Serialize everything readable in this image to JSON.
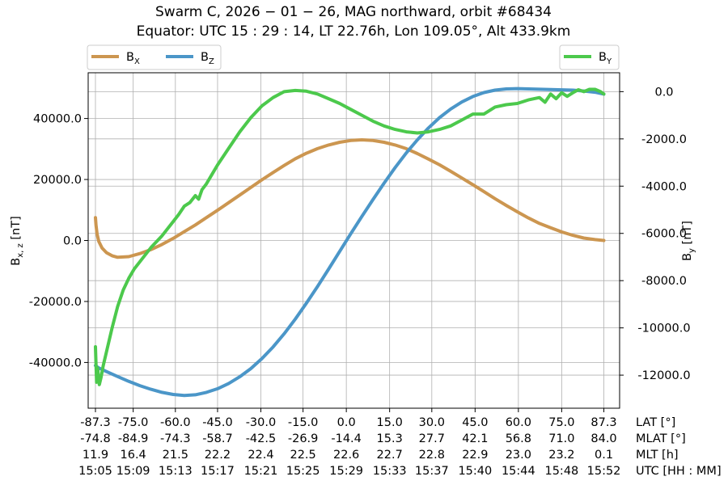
{
  "chart_data": {
    "type": "line",
    "title": "Swarm C,  2026 − 01 − 26,  MAG northward,  orbit #68434",
    "subtitle": "Equator:  UTC 15 : 29 : 14,  LT 22.76h,  Lon 109.05°,  Alt 433.9km",
    "left_axis": {
      "label_main": "B",
      "label_sub": "x, z",
      "label_unit": " [nT]",
      "range": [
        -55000,
        55000
      ],
      "ticks": [
        -40000,
        -20000,
        0,
        20000,
        40000
      ],
      "tick_labels": [
        "-40000.0",
        "-20000.0",
        "0.0",
        "20000.0",
        "40000.0"
      ]
    },
    "right_axis": {
      "label_main": "B",
      "label_sub": "y",
      "label_unit": " [nT]",
      "range": [
        -13400,
        800
      ],
      "ticks": [
        -12000,
        -10000,
        -8000,
        -6000,
        -4000,
        -2000,
        0
      ],
      "tick_labels": [
        "-12000.0",
        "-10000.0",
        "-8000.0",
        "-6000.0",
        "-4000.0",
        "-2000.0",
        "0.0"
      ]
    },
    "x_range": [
      0,
      47
    ],
    "x_rows": [
      {
        "label": "LAT [°]",
        "values": [
          "-87.3",
          "-75.0",
          "-60.0",
          "-45.0",
          "-30.0",
          "-15.0",
          "0.0",
          "15.0",
          "30.0",
          "45.0",
          "60.0",
          "75.0",
          "87.3"
        ]
      },
      {
        "label": "MLAT [°]",
        "values": [
          "-74.8",
          "-84.9",
          "-74.3",
          "-58.7",
          "-42.5",
          "-26.9",
          "-14.4",
          "15.3",
          "27.7",
          "42.1",
          "56.8",
          "71.0",
          "84.0"
        ]
      },
      {
        "label": "MLT [h]",
        "values": [
          "11.9",
          "16.4",
          "21.5",
          "22.2",
          "22.4",
          "22.5",
          "22.6",
          "22.7",
          "22.8",
          "22.9",
          "23.0",
          "23.2",
          "0.1"
        ]
      },
      {
        "label": "UTC [HH : MM]",
        "values": [
          "15:05",
          "15:09",
          "15:13",
          "15:17",
          "15:21",
          "15:25",
          "15:29",
          "15:33",
          "15:37",
          "15:40",
          "15:44",
          "15:48",
          "15:52"
        ]
      }
    ],
    "x_tick_positions": [
      0,
      3.4,
      7.2,
      11.0,
      14.9,
      18.7,
      22.6,
      26.5,
      30.3,
      34.2,
      38.1,
      42.0,
      45.8
    ],
    "legend_left": {
      "placement": "top-left",
      "entries": [
        {
          "main": "B",
          "sub": "X",
          "color": "#cc9650"
        },
        {
          "main": "B",
          "sub": "Z",
          "color": "#4b96c8"
        }
      ]
    },
    "legend_right": {
      "placement": "top-right",
      "entries": [
        {
          "main": "B",
          "sub": "Y",
          "color": "#4cc94c"
        }
      ]
    },
    "grid": true,
    "series": [
      {
        "name": "BX",
        "axis": "left",
        "color": "#cc9650",
        "x": [
          0,
          0.05,
          0.15,
          0.3,
          0.6,
          1,
          1.5,
          2,
          3,
          4,
          5,
          6,
          7,
          8,
          9,
          10,
          11,
          12,
          13,
          14,
          15,
          16,
          17,
          18,
          19,
          20,
          21,
          22,
          23,
          24,
          25,
          26,
          27,
          28,
          29,
          30,
          31,
          32,
          33,
          34,
          35,
          36,
          37,
          38,
          39,
          40,
          41,
          42,
          43,
          44,
          45,
          45.8
        ],
        "y": [
          7500,
          5000,
          2000,
          -300,
          -2500,
          -4000,
          -5000,
          -5500,
          -5300,
          -4300,
          -3000,
          -1300,
          700,
          2900,
          5100,
          7500,
          9900,
          12400,
          14900,
          17400,
          19900,
          22300,
          24600,
          26800,
          28600,
          30100,
          31300,
          32200,
          32800,
          33000,
          32800,
          32200,
          31300,
          30100,
          28500,
          26700,
          24800,
          22700,
          20500,
          18300,
          16000,
          13700,
          11500,
          9400,
          7400,
          5600,
          4200,
          2800,
          1700,
          800,
          300,
          0
        ]
      },
      {
        "name": "BZ",
        "axis": "left",
        "color": "#4b96c8",
        "x": [
          0,
          0.3,
          1,
          2,
          3,
          4,
          5,
          6,
          7,
          8,
          9,
          10,
          11,
          12,
          13,
          14,
          15,
          16,
          17,
          18,
          19,
          20,
          21,
          22,
          23,
          24,
          25,
          26,
          27,
          28,
          29,
          30,
          31,
          32,
          33,
          34,
          35,
          36,
          37,
          38,
          39,
          40,
          41,
          42,
          43,
          44,
          45,
          45.8
        ],
        "y": [
          -41000,
          -41800,
          -43000,
          -44600,
          -46200,
          -47600,
          -48800,
          -49800,
          -50500,
          -50800,
          -50600,
          -49800,
          -48600,
          -46900,
          -44700,
          -42000,
          -38700,
          -34900,
          -30600,
          -25800,
          -20600,
          -15100,
          -9400,
          -3600,
          2200,
          7900,
          13400,
          18800,
          23900,
          28700,
          33000,
          36900,
          40300,
          43100,
          45400,
          47200,
          48500,
          49300,
          49700,
          49800,
          49700,
          49600,
          49500,
          49400,
          49300,
          49000,
          48600,
          48000
        ]
      },
      {
        "name": "BY",
        "axis": "right",
        "color": "#4cc94c",
        "x": [
          0,
          0.1,
          0.2,
          0.35,
          0.5,
          0.7,
          1,
          1.5,
          2,
          2.5,
          3,
          3.5,
          4,
          5,
          6,
          7,
          7.5,
          8,
          8.5,
          9,
          9.3,
          9.6,
          10,
          10.5,
          11,
          12,
          13,
          14,
          15,
          16,
          17,
          18,
          19,
          20,
          21,
          22,
          23,
          24,
          25,
          26,
          27,
          28,
          29,
          30,
          31,
          32,
          33,
          34,
          35,
          36,
          37,
          38,
          39,
          40,
          40.5,
          41,
          41.5,
          42,
          42.5,
          43,
          43.5,
          44,
          44.5,
          45,
          45.5,
          45.8
        ],
        "y": [
          -10800,
          -12300,
          -11700,
          -12400,
          -12100,
          -11600,
          -11000,
          -10000,
          -9100,
          -8400,
          -7900,
          -7500,
          -7200,
          -6600,
          -6100,
          -5500,
          -5200,
          -4850,
          -4700,
          -4400,
          -4550,
          -4150,
          -3900,
          -3500,
          -3100,
          -2400,
          -1700,
          -1100,
          -600,
          -250,
          0,
          50,
          20,
          -100,
          -300,
          -500,
          -750,
          -1000,
          -1250,
          -1450,
          -1600,
          -1700,
          -1750,
          -1700,
          -1600,
          -1450,
          -1200,
          -950,
          -950,
          -650,
          -550,
          -500,
          -350,
          -250,
          -450,
          -100,
          -300,
          -50,
          -200,
          -50,
          80,
          0,
          100,
          100,
          0,
          -100
        ]
      }
    ]
  }
}
